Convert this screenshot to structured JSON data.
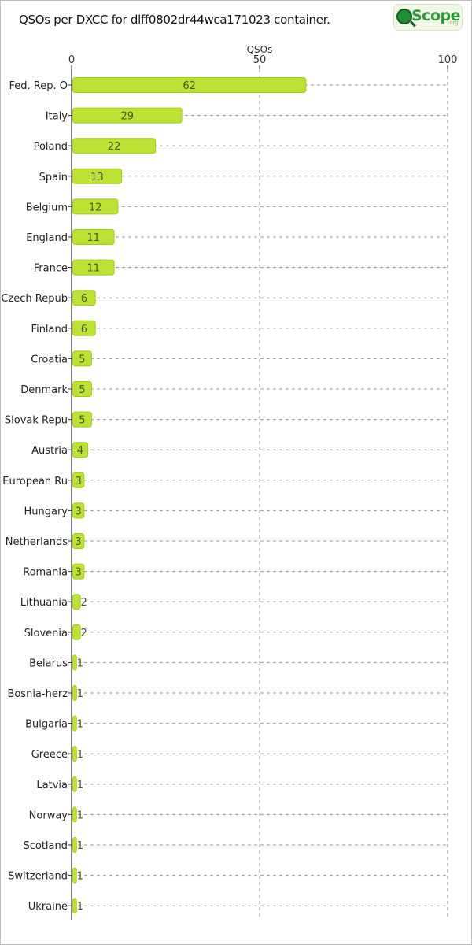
{
  "window": {
    "title": "QSOs per DXCC for dlff0802dr44wca171023 container.",
    "logo": {
      "text": "Scope",
      "suffix": ".org"
    }
  },
  "colors": {
    "bar_fill": "#bde234",
    "bar_stroke": "#a4cc1c",
    "grid": "#9a9a9a",
    "axis": "#333333",
    "label_text": "#4a5a2a"
  },
  "chart_data": {
    "type": "bar",
    "orientation": "horizontal",
    "title": "QSOs per DXCC for dlff0802dr44wca171023 container.",
    "xlabel": "QSOs",
    "ylabel": "",
    "xlim": [
      0,
      100
    ],
    "xticks": [
      0,
      50,
      100
    ],
    "grid": true,
    "legend": "none",
    "categories": [
      "Fed. Rep. O",
      "Italy",
      "Poland",
      "Spain",
      "Belgium",
      "England",
      "France",
      "Czech Repub",
      "Finland",
      "Croatia",
      "Denmark",
      "Slovak Repu",
      "Austria",
      "European Ru",
      "Hungary",
      "Netherlands",
      "Romania",
      "Lithuania",
      "Slovenia",
      "Belarus",
      "Bosnia-herz",
      "Bulgaria",
      "Greece",
      "Latvia",
      "Norway",
      "Scotland",
      "Switzerland",
      "Ukraine"
    ],
    "values": [
      62,
      29,
      22,
      13,
      12,
      11,
      11,
      6,
      6,
      5,
      5,
      5,
      4,
      3,
      3,
      3,
      3,
      2,
      2,
      1,
      1,
      1,
      1,
      1,
      1,
      1,
      1,
      1
    ]
  }
}
